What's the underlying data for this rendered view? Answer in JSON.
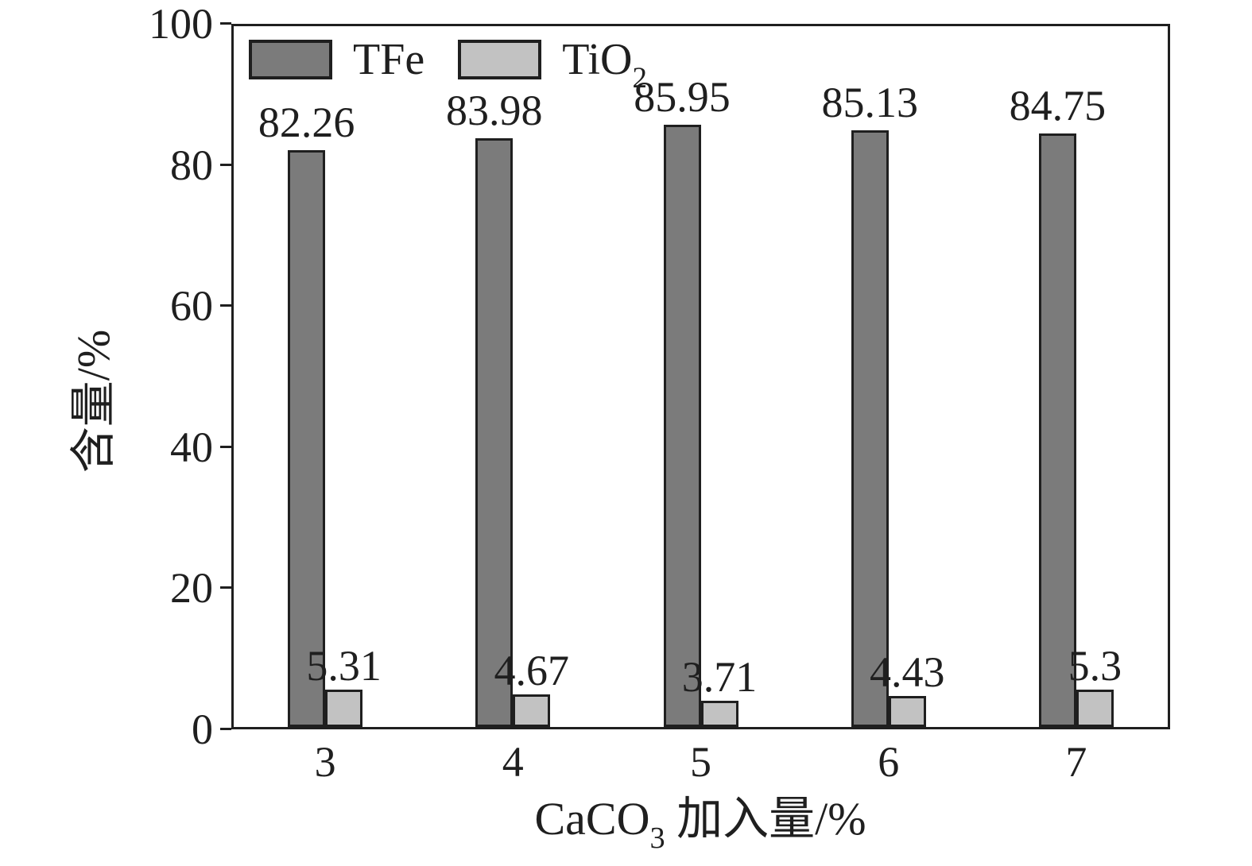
{
  "figure": {
    "background": "#ffffff",
    "axis_color": "#1f1f1f"
  },
  "chart_data": {
    "type": "bar",
    "title": "",
    "categories": [
      "3",
      "4",
      "5",
      "6",
      "7"
    ],
    "series": [
      {
        "name": "TFe",
        "name_sub": "",
        "color": "#7b7b7b",
        "values": [
          82.26,
          83.98,
          85.95,
          85.13,
          84.75
        ],
        "labels": [
          "82.26",
          "83.98",
          "85.95",
          "85.13",
          "84.75"
        ]
      },
      {
        "name": "TiO",
        "name_sub": "2",
        "color": "#c2c2c2",
        "values": [
          5.31,
          4.67,
          3.71,
          4.43,
          5.3
        ],
        "labels": [
          "5.31",
          "4.67",
          "3.71",
          "4.43",
          "5.3"
        ]
      }
    ],
    "bar_edge_color": "#1f1f1f",
    "xlabel_base": "CaCO",
    "xlabel_sub": "3",
    "xlabel_rest": " 加入量/%",
    "ylabel": "含量/%",
    "ylim": [
      0,
      100
    ],
    "yticks": [
      "0",
      "20",
      "40",
      "60",
      "80",
      "100"
    ],
    "grid": false,
    "legend_position": "upper-left-inside"
  }
}
